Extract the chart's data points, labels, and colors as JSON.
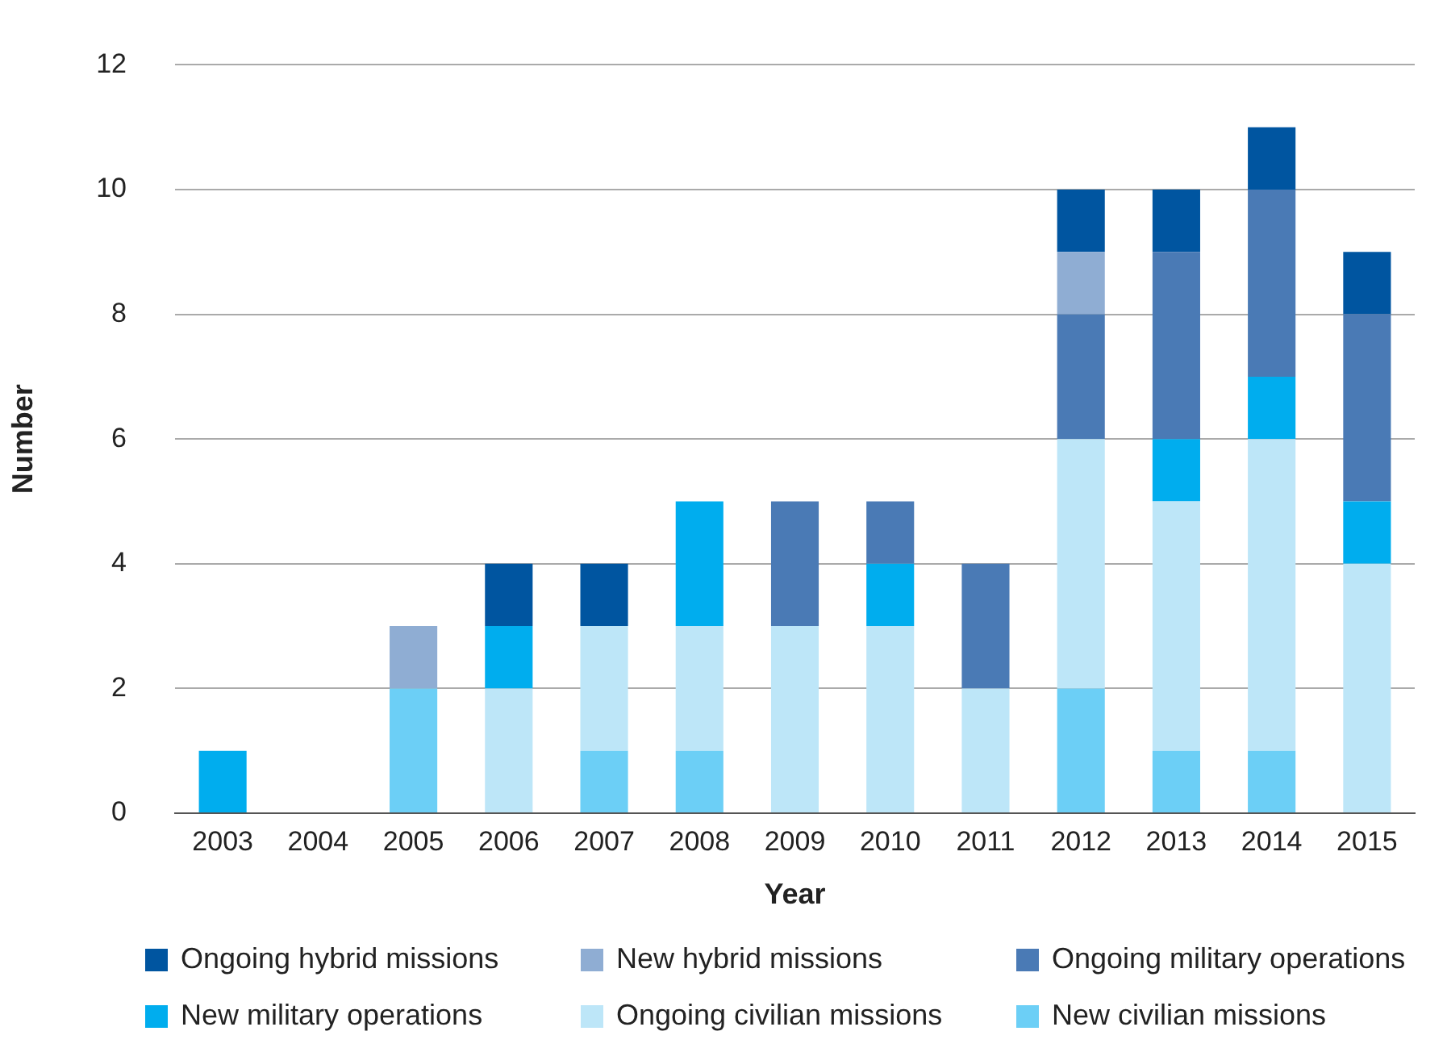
{
  "chart_data": {
    "type": "bar",
    "stacked": true,
    "xlabel": "Year",
    "ylabel": "Number",
    "categories": [
      "2003",
      "2004",
      "2005",
      "2006",
      "2007",
      "2008",
      "2009",
      "2010",
      "2011",
      "2012",
      "2013",
      "2014",
      "2015"
    ],
    "ylim": [
      0,
      12
    ],
    "yticks": [
      0,
      2,
      4,
      6,
      8,
      10,
      12
    ],
    "grid": "y",
    "legend": "bottom",
    "series": [
      {
        "name": "New civilian missions",
        "color": "#6ccff6",
        "values": [
          0,
          0,
          2,
          0,
          1,
          1,
          0,
          0,
          0,
          2,
          1,
          1,
          0
        ]
      },
      {
        "name": "Ongoing civilian missions",
        "color": "#bde6f8",
        "values": [
          0,
          0,
          0,
          2,
          2,
          2,
          3,
          3,
          2,
          4,
          4,
          5,
          4
        ]
      },
      {
        "name": "New military operations",
        "color": "#00adee",
        "values": [
          1,
          0,
          0,
          1,
          0,
          2,
          0,
          1,
          0,
          0,
          1,
          1,
          1
        ]
      },
      {
        "name": "Ongoing military operations",
        "color": "#4a7ab5",
        "values": [
          0,
          0,
          0,
          0,
          0,
          0,
          2,
          1,
          2,
          2,
          3,
          3,
          3
        ]
      },
      {
        "name": "New hybrid missions",
        "color": "#8fadd3",
        "values": [
          0,
          0,
          1,
          0,
          0,
          0,
          0,
          0,
          0,
          1,
          0,
          0,
          0
        ]
      },
      {
        "name": "Ongoing hybrid missions",
        "color": "#0055a0",
        "values": [
          0,
          0,
          0,
          1,
          1,
          0,
          0,
          0,
          0,
          1,
          1,
          1,
          1
        ]
      }
    ]
  }
}
